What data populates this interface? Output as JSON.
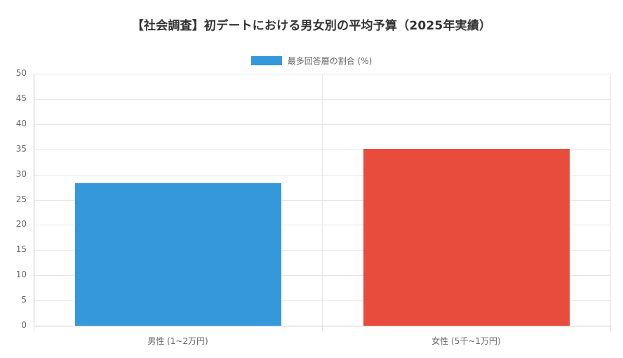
{
  "chart_data": {
    "type": "bar",
    "title": "【社会調査】初デートにおける男女別の平均予算（2025年実績）",
    "categories": [
      "男性 (1~2万円)",
      "女性 (5千~1万円)"
    ],
    "series": [
      {
        "name": "最多回答層の割合 (%)",
        "values": [
          28.3,
          35.1
        ],
        "colors": [
          "#3498db",
          "#e74c3c"
        ]
      }
    ],
    "xlabel": "",
    "ylabel": "",
    "ylim": [
      0,
      50
    ],
    "yticks": [
      0,
      5,
      10,
      15,
      20,
      25,
      30,
      35,
      40,
      45,
      50
    ],
    "grid": true,
    "legend_position": "top"
  },
  "header": {
    "title": "【社会調査】初デートにおける男女別の平均予算（2025年実績）"
  },
  "legend": {
    "label": "最多回答層の割合 (%)",
    "color": "#3498db"
  },
  "axis": {
    "y_ticks": [
      "50",
      "45",
      "40",
      "35",
      "30",
      "25",
      "20",
      "15",
      "10",
      "5",
      "0"
    ]
  },
  "bars": [
    {
      "label": "男性 (1~2万円)",
      "value": 28.3,
      "color": "#3498db"
    },
    {
      "label": "女性 (5千~1万円)",
      "value": 35.1,
      "color": "#e74c3c"
    }
  ]
}
